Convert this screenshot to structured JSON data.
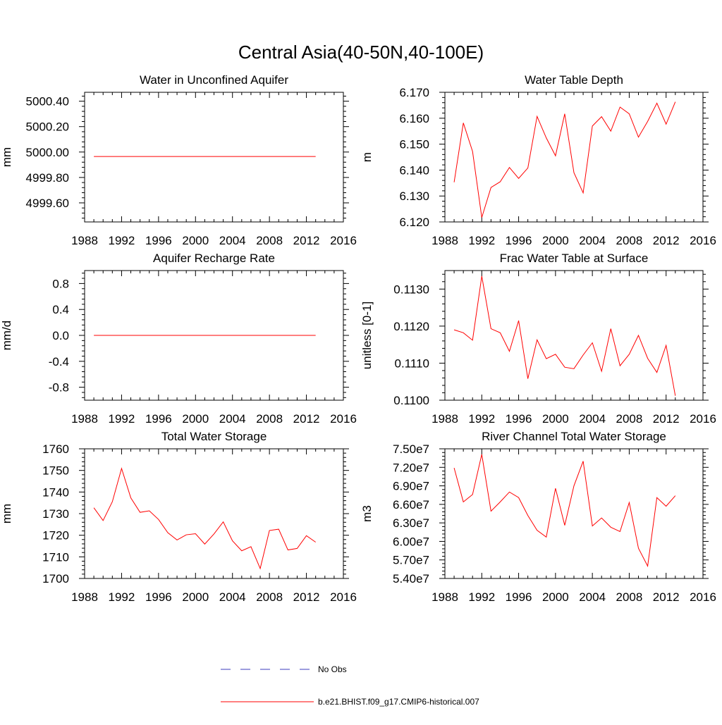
{
  "main_title": "Central Asia(40-50N,40-100E)",
  "legend": {
    "items": [
      {
        "label": "No Obs",
        "color": "#3b3bbd",
        "style": "dashed"
      },
      {
        "label": "b.e21.BHIST.f09_g17.CMIP6-historical.007",
        "color": "#ff0000",
        "style": "solid"
      }
    ]
  },
  "chart_data": [
    {
      "type": "line",
      "title": "Water in Unconfined Aquifer",
      "ylabel": "mm",
      "xlim": [
        1988,
        2016
      ],
      "xticks": [
        "1988",
        "1992",
        "1996",
        "2000",
        "2004",
        "2008",
        "2012",
        "2016"
      ],
      "ylim": [
        4999.45,
        5000.47
      ],
      "yticks": [
        "4999.60",
        "4999.80",
        "5000.00",
        "5000.20",
        "5000.40"
      ],
      "x": [
        1989,
        1990,
        1991,
        1992,
        1993,
        1994,
        1995,
        1996,
        1997,
        1998,
        1999,
        2000,
        2001,
        2002,
        2003,
        2004,
        2005,
        2006,
        2007,
        2008,
        2009,
        2010,
        2011,
        2012,
        2013
      ],
      "series": [
        {
          "color": "#ff0000",
          "values": [
            4999.965,
            4999.965,
            4999.965,
            4999.965,
            4999.965,
            4999.965,
            4999.965,
            4999.965,
            4999.965,
            4999.965,
            4999.965,
            4999.965,
            4999.965,
            4999.965,
            4999.965,
            4999.965,
            4999.965,
            4999.965,
            4999.965,
            4999.965,
            4999.965,
            4999.965,
            4999.965,
            4999.965,
            4999.965
          ]
        }
      ]
    },
    {
      "type": "line",
      "title": "Water Table Depth",
      "ylabel": "m",
      "xlim": [
        1988,
        2016
      ],
      "xticks": [
        "1988",
        "1992",
        "1996",
        "2000",
        "2004",
        "2008",
        "2012",
        "2016"
      ],
      "ylim": [
        6.12,
        6.17
      ],
      "yticks": [
        "6.120",
        "6.130",
        "6.140",
        "6.150",
        "6.160",
        "6.170"
      ],
      "x": [
        1989,
        1990,
        1991,
        1992,
        1993,
        1994,
        1995,
        1996,
        1997,
        1998,
        1999,
        2000,
        2001,
        2002,
        2003,
        2004,
        2005,
        2006,
        2007,
        2008,
        2009,
        2010,
        2011,
        2012,
        2013
      ],
      "series": [
        {
          "color": "#ff0000",
          "values": [
            6.1353,
            6.1582,
            6.1472,
            6.1217,
            6.1333,
            6.1355,
            6.141,
            6.1368,
            6.1408,
            6.1607,
            6.1524,
            6.1455,
            6.1617,
            6.139,
            6.1312,
            6.157,
            6.1606,
            6.155,
            6.1643,
            6.1617,
            6.1527,
            6.1588,
            6.1658,
            6.1577,
            6.1663
          ]
        }
      ]
    },
    {
      "type": "line",
      "title": "Aquifer Recharge Rate",
      "ylabel": "mm/d",
      "xlim": [
        1988,
        2016
      ],
      "xticks": [
        "1988",
        "1992",
        "1996",
        "2000",
        "2004",
        "2008",
        "2012",
        "2016"
      ],
      "ylim": [
        -1.0,
        1.0
      ],
      "yticks": [
        "-0.8",
        "-0.4",
        "0.0",
        "0.4",
        "0.8"
      ],
      "x": [
        1989,
        1990,
        1991,
        1992,
        1993,
        1994,
        1995,
        1996,
        1997,
        1998,
        1999,
        2000,
        2001,
        2002,
        2003,
        2004,
        2005,
        2006,
        2007,
        2008,
        2009,
        2010,
        2011,
        2012,
        2013
      ],
      "series": [
        {
          "color": "#ff0000",
          "values": [
            0,
            0,
            0,
            0,
            0,
            0,
            0,
            0,
            0,
            0,
            0,
            0,
            0,
            0,
            0,
            0,
            0,
            0,
            0,
            0,
            0,
            0,
            0,
            0,
            0
          ]
        }
      ]
    },
    {
      "type": "line",
      "title": "Frac Water Table at Surface",
      "ylabel": "unitless [0-1]",
      "xlim": [
        1988,
        2016
      ],
      "xticks": [
        "1988",
        "1992",
        "1996",
        "2000",
        "2004",
        "2008",
        "2012",
        "2016"
      ],
      "ylim": [
        0.11,
        0.1135
      ],
      "yticks": [
        "0.1100",
        "0.1110",
        "0.1120",
        "0.1130"
      ],
      "x": [
        1989,
        1990,
        1991,
        1992,
        1993,
        1994,
        1995,
        1996,
        1997,
        1998,
        1999,
        2000,
        2001,
        2002,
        2003,
        2004,
        2005,
        2006,
        2007,
        2008,
        2009,
        2010,
        2011,
        2012,
        2013
      ],
      "series": [
        {
          "color": "#ff0000",
          "values": [
            0.1119,
            0.11182,
            0.11162,
            0.11335,
            0.11193,
            0.11182,
            0.11132,
            0.11215,
            0.11058,
            0.11163,
            0.11112,
            0.11124,
            0.11089,
            0.11085,
            0.11122,
            0.11155,
            0.11078,
            0.11193,
            0.11093,
            0.11124,
            0.11175,
            0.11113,
            0.11075,
            0.11148,
            0.11012
          ]
        }
      ]
    },
    {
      "type": "line",
      "title": "Total Water Storage",
      "ylabel": "mm",
      "xlim": [
        1988,
        2016
      ],
      "xticks": [
        "1988",
        "1992",
        "1996",
        "2000",
        "2004",
        "2008",
        "2012",
        "2016"
      ],
      "ylim": [
        1700,
        1760
      ],
      "yticks": [
        "1700",
        "1710",
        "1720",
        "1730",
        "1740",
        "1750",
        "1760"
      ],
      "x": [
        1989,
        1990,
        1991,
        1992,
        1993,
        1994,
        1995,
        1996,
        1997,
        1998,
        1999,
        2000,
        2001,
        2002,
        2003,
        2004,
        2005,
        2006,
        2007,
        2008,
        2009,
        2010,
        2011,
        2012,
        2013
      ],
      "series": [
        {
          "color": "#ff0000",
          "values": [
            1732.7,
            1726.8,
            1735.5,
            1750.9,
            1737.3,
            1730.6,
            1731.3,
            1727.3,
            1721.2,
            1717.8,
            1720.2,
            1720.7,
            1715.9,
            1720.6,
            1726.2,
            1717.4,
            1712.8,
            1714.7,
            1704.6,
            1722.2,
            1722.8,
            1713.2,
            1713.9,
            1719.8,
            1716.8
          ]
        }
      ]
    },
    {
      "type": "line",
      "title": "River Channel Total Water Storage",
      "ylabel": "m3",
      "xlim": [
        1988,
        2016
      ],
      "xticks": [
        "1988",
        "1992",
        "1996",
        "2000",
        "2004",
        "2008",
        "2012",
        "2016"
      ],
      "ylim": [
        54000000,
        75000000
      ],
      "yticks": [
        "5.40e7",
        "5.70e7",
        "6.00e7",
        "6.30e7",
        "6.60e7",
        "6.90e7",
        "7.20e7",
        "7.50e7"
      ],
      "x": [
        1989,
        1990,
        1991,
        1992,
        1993,
        1994,
        1995,
        1996,
        1997,
        1998,
        1999,
        2000,
        2001,
        2002,
        2003,
        2004,
        2005,
        2006,
        2007,
        2008,
        2009,
        2010,
        2011,
        2012,
        2013
      ],
      "series": [
        {
          "color": "#ff0000",
          "values": [
            71900000,
            66400000,
            67600000,
            74100000,
            64900000,
            66400000,
            68000000,
            67100000,
            64200000,
            61800000,
            60700000,
            68600000,
            62600000,
            69000000,
            73000000,
            62500000,
            63800000,
            62300000,
            61600000,
            66300000,
            58900000,
            56000000,
            67100000,
            65700000,
            67400000
          ]
        }
      ]
    }
  ]
}
